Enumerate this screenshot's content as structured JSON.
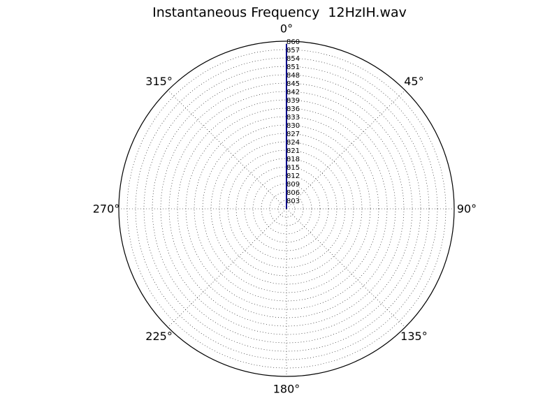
{
  "chart_data": {
    "type": "line",
    "projection": "polar",
    "title": "Instantaneous Frequency  12HzIH.wav",
    "theta_zero_location": "top",
    "theta_direction": "clockwise",
    "angle_ticks": [
      {
        "deg": 0,
        "label": "0°"
      },
      {
        "deg": 45,
        "label": "45°"
      },
      {
        "deg": 90,
        "label": "90°"
      },
      {
        "deg": 135,
        "label": "135°"
      },
      {
        "deg": 180,
        "label": "180°"
      },
      {
        "deg": 225,
        "label": "225°"
      },
      {
        "deg": 270,
        "label": "270°"
      },
      {
        "deg": 315,
        "label": "315°"
      }
    ],
    "rlim": [
      800,
      860
    ],
    "radial_ticks": [
      "803",
      "806",
      "809",
      "812",
      "815",
      "818",
      "821",
      "824",
      "827",
      "830",
      "833",
      "836",
      "839",
      "842",
      "845",
      "848",
      "851",
      "854",
      "857",
      "860"
    ],
    "radial_tick_values": [
      803,
      806,
      809,
      812,
      815,
      818,
      821,
      824,
      827,
      830,
      833,
      836,
      839,
      842,
      845,
      848,
      851,
      854,
      857,
      860
    ],
    "grid": true,
    "series": [
      {
        "color": "#00008b",
        "theta_deg": [
          0,
          0
        ],
        "r": [
          800,
          859
        ]
      }
    ]
  }
}
